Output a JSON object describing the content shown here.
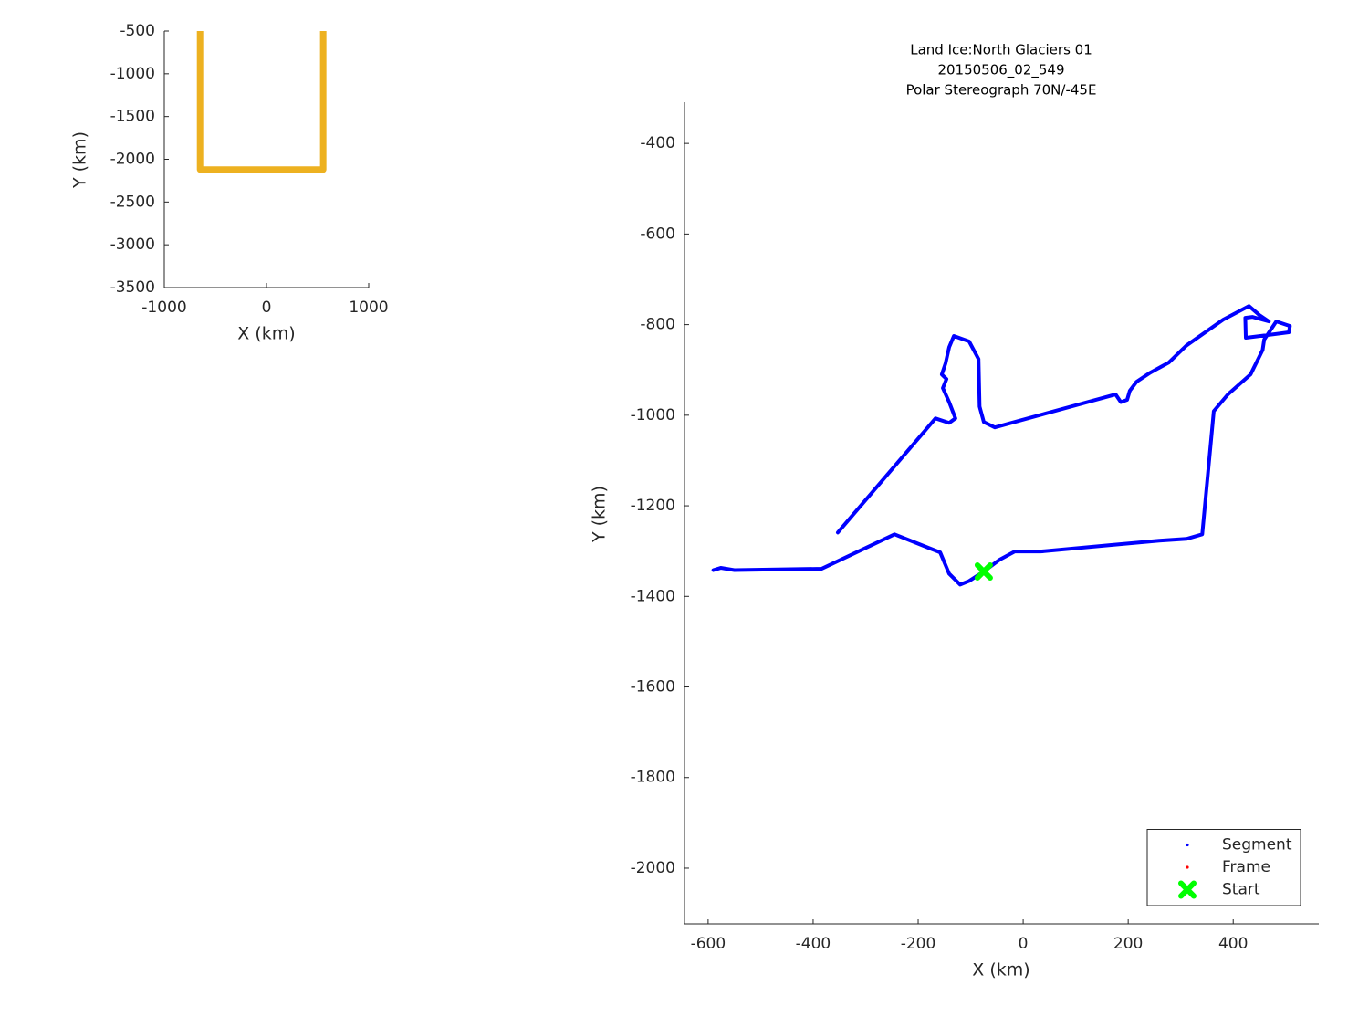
{
  "chart_data": [
    {
      "type": "line",
      "xlabel": "X (km)",
      "ylabel": "Y (km)",
      "xlim": [
        -1000,
        1000
      ],
      "ylim": [
        -3500,
        -500
      ],
      "xticks": [
        -1000,
        0,
        1000
      ],
      "yticks": [
        -3500,
        -3000,
        -2500,
        -2000,
        -1500,
        -1000,
        -500
      ],
      "series": [
        {
          "color": "#EDB120",
          "marker": "none",
          "x": [
            -650,
            -650,
            555,
            555
          ],
          "y": [
            -500,
            -2120,
            -2120,
            -500
          ]
        }
      ]
    },
    {
      "type": "line",
      "title": [
        "Land Ice:North Glaciers 01",
        "20150506_02_549",
        "Polar Stereograph 70N/-45E"
      ],
      "xlabel": "X (km)",
      "ylabel": "Y (km)",
      "xlim": [
        -645,
        563
      ],
      "ylim": [
        -2123,
        -309
      ],
      "xticks": [
        -600,
        -400,
        -200,
        0,
        200,
        400
      ],
      "yticks": [
        -2000,
        -1800,
        -1600,
        -1400,
        -1200,
        -1000,
        -800,
        -600,
        -400
      ],
      "legend": "lower right",
      "series": [
        {
          "name": "Segment",
          "color": "#0000FF",
          "marker": "dot",
          "x": [
            -590,
            -576,
            -550,
            -384,
            -245,
            -158,
            -141,
            -120,
            -103,
            -75,
            -45,
            -16,
            33,
            163,
            259,
            311,
            341,
            363,
            390,
            433,
            456,
            459,
            482,
            508,
            506,
            424,
            423,
            437,
            468,
            450,
            430,
            381,
            311,
            277,
            242,
            216,
            203,
            198,
            186,
            176,
            -54,
            -75,
            -83,
            -85,
            -103,
            -132,
            -141,
            -148,
            -155,
            -146,
            -153,
            -141,
            -129,
            -141,
            -167,
            -353
          ],
          "y": [
            -1342,
            -1337,
            -1342,
            -1339,
            -1263,
            -1303,
            -1350,
            -1374,
            -1366,
            -1345,
            -1319,
            -1301,
            -1301,
            -1287,
            -1277,
            -1273,
            -1263,
            -991,
            -954,
            -910,
            -856,
            -833,
            -793,
            -803,
            -817,
            -829,
            -785,
            -783,
            -793,
            -779,
            -759,
            -789,
            -846,
            -884,
            -906,
            -926,
            -946,
            -966,
            -971,
            -954,
            -1027,
            -1015,
            -981,
            -876,
            -837,
            -825,
            -850,
            -886,
            -910,
            -920,
            -940,
            -971,
            -1007,
            -1017,
            -1007,
            -1259
          ]
        },
        {
          "name": "Frame",
          "color": "#FF0000",
          "marker": "dot",
          "x": [],
          "y": []
        },
        {
          "name": "Start",
          "color": "#00FF00",
          "marker": "X",
          "x": [
            -75
          ],
          "y": [
            -1345
          ]
        }
      ]
    }
  ]
}
